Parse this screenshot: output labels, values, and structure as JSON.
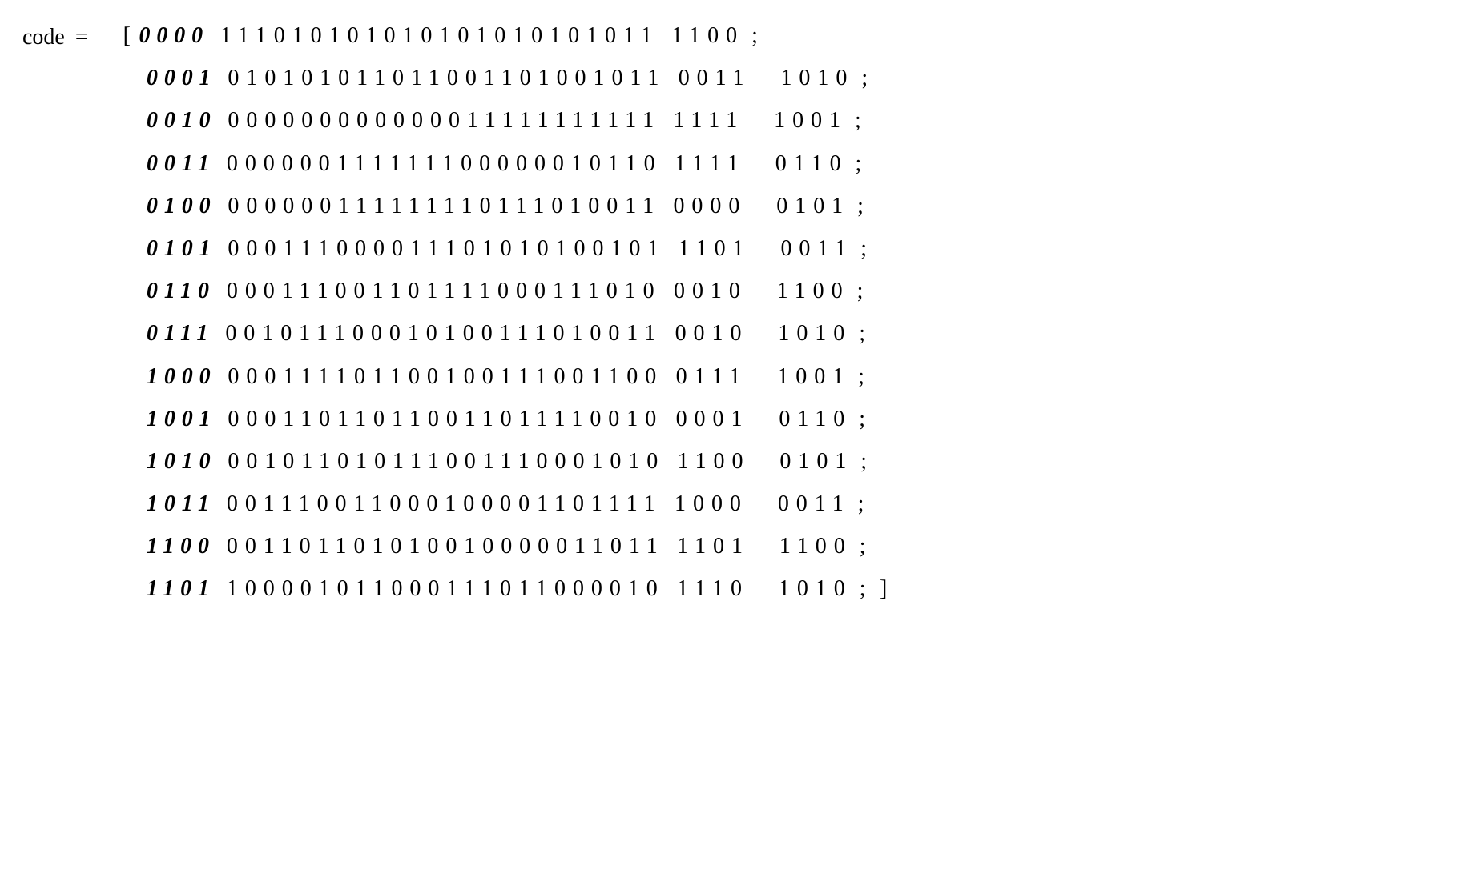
{
  "equation": {
    "lhs": "code",
    "equals": "=",
    "open_bracket": "[",
    "close_bracket": "]",
    "row_terminator": ";"
  },
  "style": {
    "font_family": "Times New Roman",
    "font_size_pt": 21,
    "text_color": "#000000",
    "background_color": "#ffffff",
    "prefix_bold": true,
    "prefix_italic": true,
    "bits_letter_spacing_em": 0.32,
    "prefix_letter_spacing_em": 0.28,
    "line_height": 1.9
  },
  "rows": [
    {
      "prefix": "0000",
      "bits_a": "111010101010101010101011",
      "bits_b": "1100"
    },
    {
      "prefix": "0001",
      "bits_a": "010101011011001101001011",
      "bits_b": "0011 1010"
    },
    {
      "prefix": "0010",
      "bits_a": "000000000000011111111111",
      "bits_b": "1111 1001"
    },
    {
      "prefix": "0011",
      "bits_a": "000000111111100000010110",
      "bits_b": "1111 0110"
    },
    {
      "prefix": "0100",
      "bits_a": "000000111111110111010011",
      "bits_b": "0000 0101"
    },
    {
      "prefix": "0101",
      "bits_a": "000111000011101010100101",
      "bits_b": "1101 0011"
    },
    {
      "prefix": "0110",
      "bits_a": "000111001101111000111010",
      "bits_b": "0010 1100"
    },
    {
      "prefix": "0111",
      "bits_a": "001011100010100111010011",
      "bits_b": "0010 1010"
    },
    {
      "prefix": "1000",
      "bits_a": "000111101100100111001100",
      "bits_b": "0111 1001"
    },
    {
      "prefix": "1001",
      "bits_a": "000110110110011011110010",
      "bits_b": "0001 0110"
    },
    {
      "prefix": "1010",
      "bits_a": "001011010111001110001010",
      "bits_b": "1100 0101"
    },
    {
      "prefix": "1011",
      "bits_a": "001110011000100001101111",
      "bits_b": "1000 0011"
    },
    {
      "prefix": "1100",
      "bits_a": "001101101010010000011011",
      "bits_b": "1101 1100"
    },
    {
      "prefix": "1101",
      "bits_a": "100001011000111011000010",
      "bits_b": "1110 1010"
    }
  ]
}
